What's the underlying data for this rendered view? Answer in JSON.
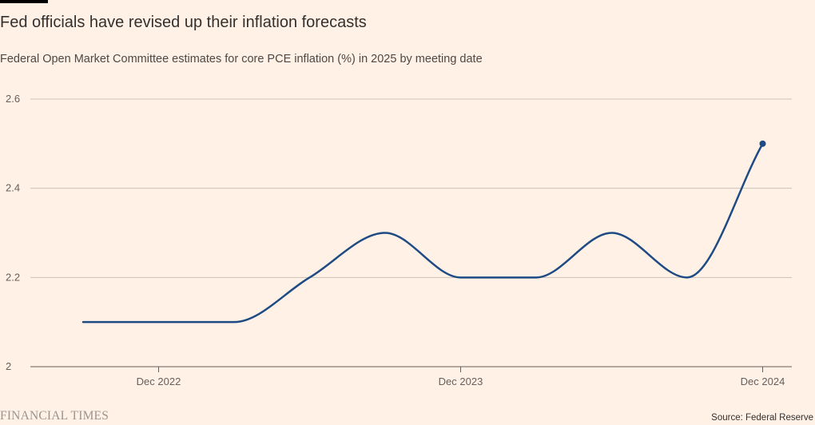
{
  "title": "Fed officials have revised up their inflation forecasts",
  "subtitle": "Federal Open Market Committee estimates for core PCE inflation (%) in 2025 by meeting date",
  "source": "Source: Federal Reserve",
  "brand": "FINANCIAL TIMES",
  "colors": {
    "background": "#FFF1E5",
    "line": "#1F4B85",
    "grid": "#CCC1B7",
    "axis": "#66605C",
    "top_rule": "#000000"
  },
  "chart_data": {
    "type": "line",
    "title": "Fed officials have revised up their inflation forecasts",
    "subtitle": "Federal Open Market Committee estimates for core PCE inflation (%) in 2025 by meeting date",
    "xlabel": "",
    "ylabel": "",
    "x_ticks": [
      "Dec 2022",
      "Dec 2023",
      "Dec 2024"
    ],
    "y_ticks": [
      2,
      2.2,
      2.4,
      2.6
    ],
    "ylim": [
      2,
      2.6
    ],
    "grid": true,
    "legend": "none",
    "end_marker": true,
    "x": [
      "Sep 2022",
      "Dec 2022",
      "Mar 2023",
      "Jun 2023",
      "Sep 2023",
      "Dec 2023",
      "Mar 2024",
      "Jun 2024",
      "Sep 2024",
      "Dec 2024"
    ],
    "series": [
      {
        "values": [
          2.1,
          2.1,
          2.1,
          2.2,
          2.3,
          2.2,
          2.2,
          2.3,
          2.2,
          2.5
        ]
      }
    ]
  }
}
